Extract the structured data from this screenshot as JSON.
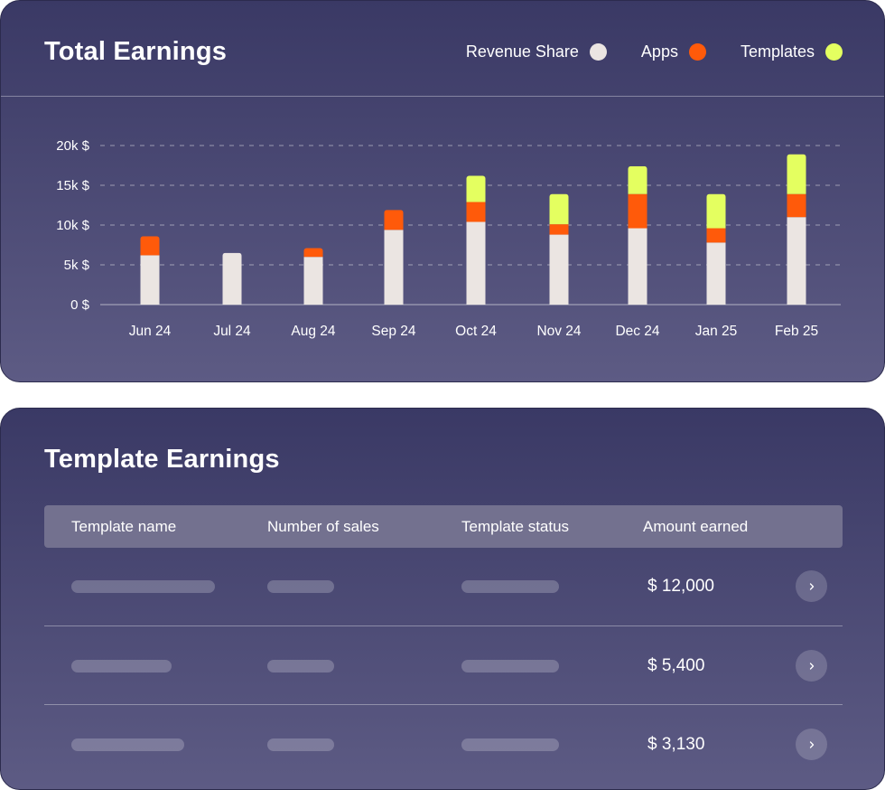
{
  "earnings_card": {
    "title": "Total Earnings",
    "legend": [
      {
        "label": "Revenue Share",
        "color": "#ebe5e2"
      },
      {
        "label": "Apps",
        "color": "#ff5a0a"
      },
      {
        "label": "Templates",
        "color": "#e4ff60"
      }
    ]
  },
  "chart_data": {
    "type": "bar",
    "stacked": true,
    "title": "Total Earnings",
    "categories": [
      "Jun 24",
      "Jul 24",
      "Aug 24",
      "Sep 24",
      "Oct 24",
      "Nov 24",
      "Dec 24",
      "Jan 25",
      "Feb 25"
    ],
    "series": [
      {
        "name": "Revenue Share",
        "color": "#ebe5e2",
        "values": [
          6200,
          6500,
          6000,
          9400,
          10400,
          8800,
          9600,
          7800,
          11000
        ]
      },
      {
        "name": "Apps",
        "color": "#ff5a0a",
        "values": [
          2400,
          0,
          1100,
          2500,
          2500,
          1300,
          4300,
          1800,
          2900
        ]
      },
      {
        "name": "Templates",
        "color": "#e4ff60",
        "values": [
          0,
          0,
          0,
          0,
          3300,
          3800,
          3500,
          4300,
          5000
        ]
      }
    ],
    "yticks": [
      0,
      5000,
      10000,
      15000,
      20000
    ],
    "ytick_labels": [
      "0 $",
      "5k $",
      "10k $",
      "15k $",
      "20k $"
    ],
    "ylim": [
      0,
      20000
    ],
    "xlabel": "",
    "ylabel": "",
    "grid": true
  },
  "templates_card": {
    "title": "Template Earnings",
    "columns": [
      "Template name",
      "Number of sales",
      "Template status",
      "Amount earned"
    ],
    "rows": [
      {
        "amount": "$ 12,000"
      },
      {
        "amount": "$ 5,400"
      },
      {
        "amount": "$ 3,130"
      }
    ]
  }
}
